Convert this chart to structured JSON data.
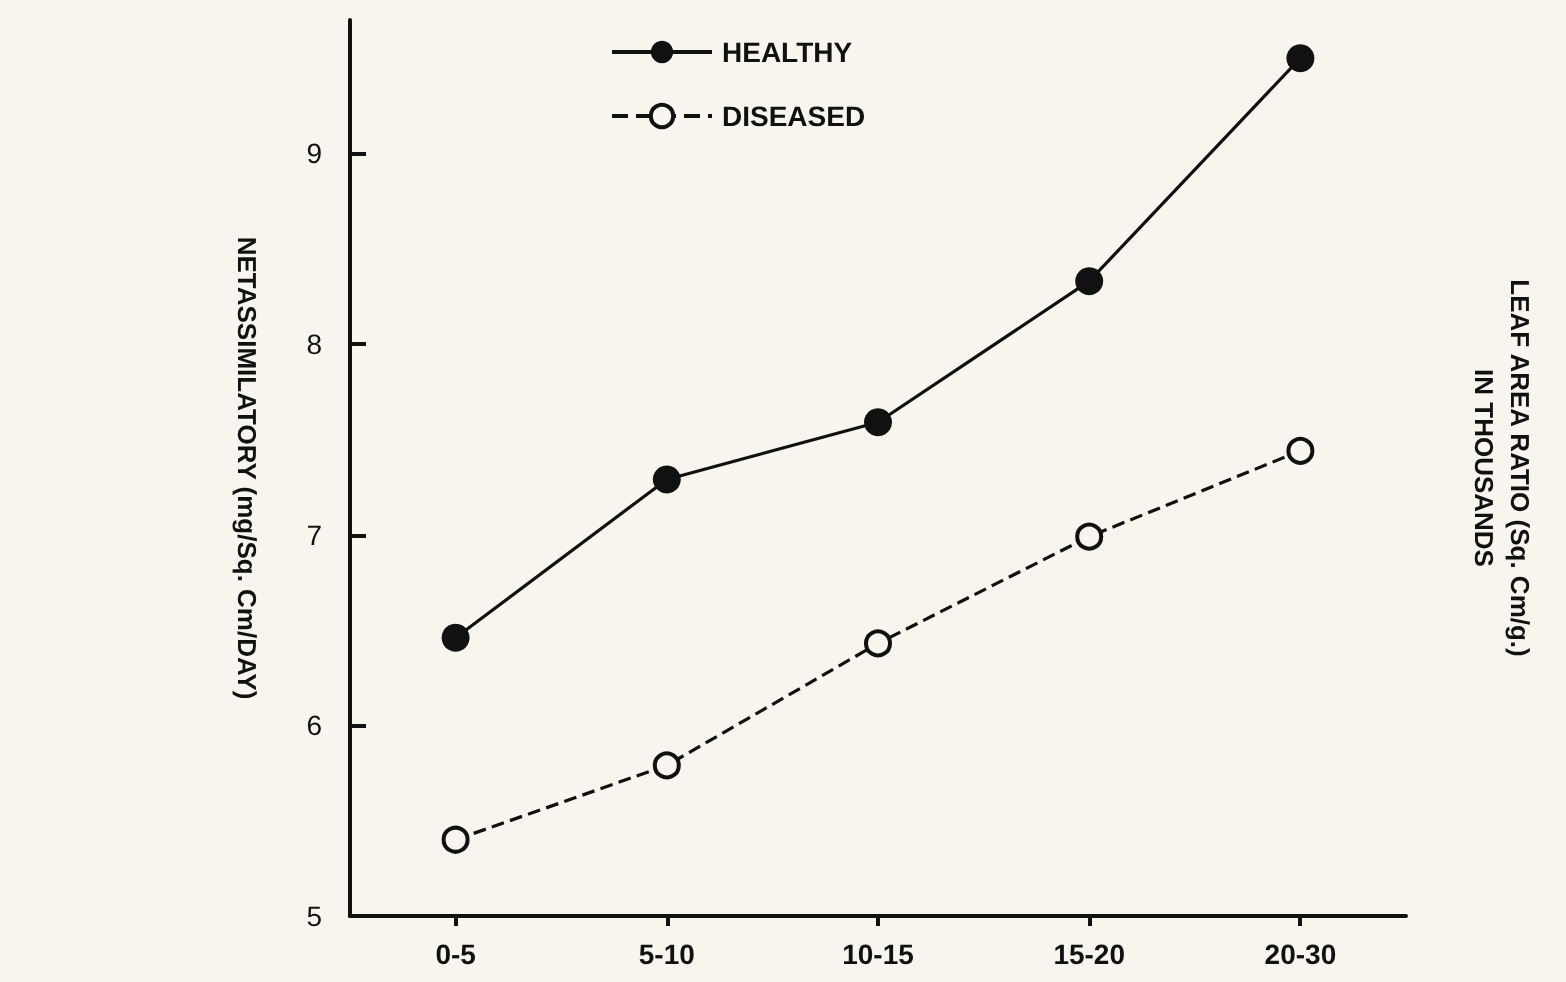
{
  "chart_data": {
    "type": "line",
    "ylabel": "NETASSIMILATORY (mg/Sq. Cm/DAY)",
    "y2label": "LEAF AREA RATIO (Sq. Cm/g.)\nIN THOUSANDS",
    "categories": [
      "0-5",
      "5-10",
      "10-15",
      "15-20",
      "20-30"
    ],
    "series": [
      {
        "name": "HEALTHY",
        "color": "#111111",
        "values": [
          6.46,
          7.29,
          7.59,
          8.33,
          9.5
        ],
        "line_style": "solid"
      },
      {
        "name": "DISEASED",
        "color": "#111111",
        "values": [
          5.4,
          5.79,
          6.43,
          6.99,
          7.44
        ],
        "line_style": "dashed"
      }
    ],
    "ylim": [
      5,
      9.7
    ],
    "yticks": [
      5,
      6,
      7,
      8,
      9
    ],
    "marker": "circle",
    "legend": "top",
    "grid": false
  }
}
